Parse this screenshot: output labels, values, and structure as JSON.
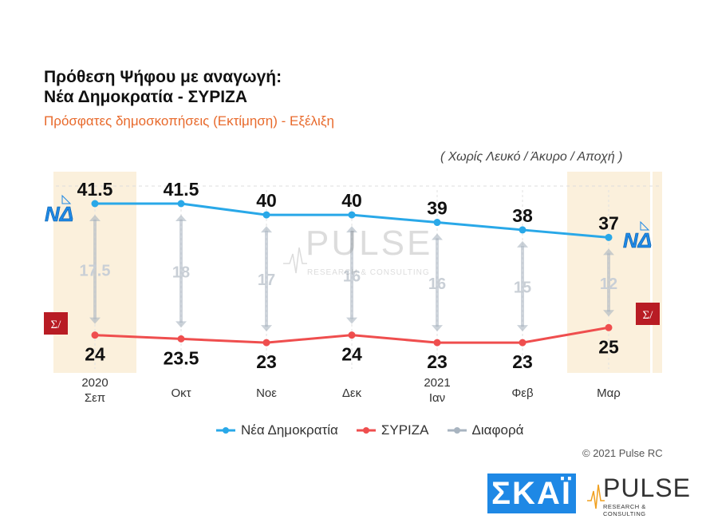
{
  "header": {
    "title_line1": "Πρόθεση Ψήφου με αναγωγή:",
    "title_line2": "Νέα Δημοκρατία - ΣΥΡΙΖΑ",
    "subtitle": "Πρόσφατες δημοσκοπήσεις (Εκτίμηση) - Εξέλιξη",
    "note": "( Χωρίς Λευκό / Άκυρο / Αποχή )"
  },
  "chart_data": {
    "type": "line",
    "categories": [
      {
        "line1": "2020",
        "line2": "Σεπ"
      },
      {
        "line1": "",
        "line2": "Οκτ"
      },
      {
        "line1": "",
        "line2": "Νοε"
      },
      {
        "line1": "",
        "line2": "Δεκ"
      },
      {
        "line1": "2021",
        "line2": "Ιαν"
      },
      {
        "line1": "",
        "line2": "Φεβ"
      },
      {
        "line1": "",
        "line2": "Μαρ"
      }
    ],
    "series": [
      {
        "name": "Νέα Δημοκρατία",
        "color": "#29a8e8",
        "values": [
          41.5,
          41.5,
          40,
          40,
          39,
          38,
          37
        ]
      },
      {
        "name": "ΣΥΡΙΖΑ",
        "color": "#ef4e4e",
        "values": [
          24,
          23.5,
          23,
          24,
          23,
          23,
          25
        ]
      }
    ],
    "difference": {
      "name": "Διαφορά",
      "color": "#a8b4c0",
      "values": [
        "17.5",
        "18",
        "17",
        "16",
        "16",
        "15",
        "12"
      ]
    },
    "nd_labels": [
      "41.5",
      "41.5",
      "40",
      "40",
      "39",
      "38",
      "37"
    ],
    "syriza_labels": [
      "24",
      "23.5",
      "23",
      "24",
      "23",
      "23",
      "25"
    ],
    "highlighted_columns": [
      0,
      6
    ],
    "highlight_color": "#fbf0dc",
    "ylim": [
      20,
      45
    ],
    "legend_position": "bottom"
  },
  "logos": {
    "nd": "ΝΔ",
    "syriza": "Σ/"
  },
  "footer": {
    "copyright": "© 2021 Pulse RC",
    "skai": "ΣΚΑΪ",
    "pulse_word": "PULSE",
    "pulse_tag": "RESEARCH & CONSULTING"
  },
  "watermark": {
    "word": "PULSE",
    "tag": "RESEARCH & CONSULTING"
  }
}
